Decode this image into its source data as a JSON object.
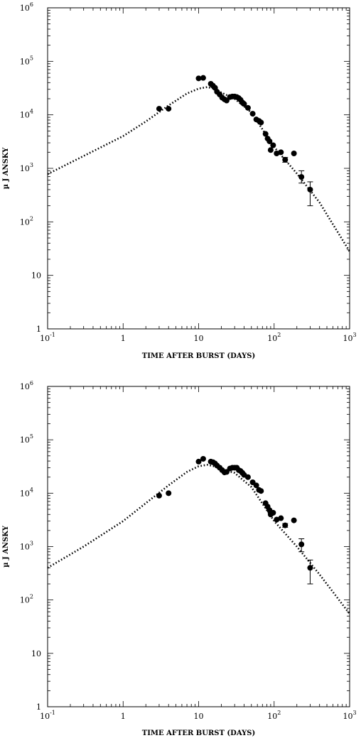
{
  "chart_data": [
    {
      "type": "scatter",
      "xlabel": "TIME AFTER BURST (DAYS)",
      "ylabel": "µ J ANSKY",
      "xscale": "log",
      "yscale": "log",
      "xlim": [
        0.1,
        1000
      ],
      "ylim": [
        1,
        1000000
      ],
      "x_ticks": [
        {
          "value": 0.1,
          "base": "10",
          "exp": "-1"
        },
        {
          "value": 1,
          "base": "1",
          "exp": ""
        },
        {
          "value": 10,
          "base": "10",
          "exp": ""
        },
        {
          "value": 100,
          "base": "10",
          "exp": "2"
        },
        {
          "value": 1000,
          "base": "10",
          "exp": "3"
        }
      ],
      "y_ticks": [
        {
          "value": 1,
          "base": "1",
          "exp": ""
        },
        {
          "value": 10,
          "base": "10",
          "exp": ""
        },
        {
          "value": 100,
          "base": "10",
          "exp": "2"
        },
        {
          "value": 1000,
          "base": "10",
          "exp": "3"
        },
        {
          "value": 10000,
          "base": "10",
          "exp": "4"
        },
        {
          "value": 100000,
          "base": "10",
          "exp": "5"
        },
        {
          "value": 1000000,
          "base": "10",
          "exp": "6"
        }
      ],
      "series": [
        {
          "style": "markers",
          "color": "#000000",
          "points": [
            {
              "x": 3,
              "y": 13000
            },
            {
              "x": 4,
              "y": 13000
            },
            {
              "x": 10,
              "y": 48000
            },
            {
              "x": 11.5,
              "y": 49000
            },
            {
              "x": 14.5,
              "y": 38000
            },
            {
              "x": 15.5,
              "y": 35000
            },
            {
              "x": 16.5,
              "y": 32000
            },
            {
              "x": 17.5,
              "y": 27000
            },
            {
              "x": 19,
              "y": 24000
            },
            {
              "x": 20.5,
              "y": 21000
            },
            {
              "x": 22,
              "y": 19500
            },
            {
              "x": 23.5,
              "y": 18500
            },
            {
              "x": 26,
              "y": 21500
            },
            {
              "x": 28,
              "y": 22000
            },
            {
              "x": 30,
              "y": 22000
            },
            {
              "x": 32,
              "y": 21500
            },
            {
              "x": 34,
              "y": 20500
            },
            {
              "x": 36,
              "y": 19000
            },
            {
              "x": 38,
              "y": 17000
            },
            {
              "x": 40,
              "y": 16000
            },
            {
              "x": 45,
              "y": 13500
            },
            {
              "x": 52,
              "y": 10500
            },
            {
              "x": 58,
              "y": 8200
            },
            {
              "x": 63,
              "y": 7700
            },
            {
              "x": 67,
              "y": 7200
            },
            {
              "x": 77,
              "y": 4400
            },
            {
              "x": 82,
              "y": 3600
            },
            {
              "x": 87,
              "y": 3200
            },
            {
              "x": 90,
              "y": 2200
            },
            {
              "x": 97,
              "y": 2700
            },
            {
              "x": 108,
              "y": 1900
            },
            {
              "x": 123,
              "y": 2000
            },
            {
              "x": 140,
              "y": 1450,
              "err": [
                1300,
                1600
              ]
            },
            {
              "x": 183,
              "y": 1900
            },
            {
              "x": 230,
              "y": 690,
              "err": [
                530,
                900
              ]
            },
            {
              "x": 300,
              "y": 400,
              "err": [
                200,
                560
              ]
            }
          ]
        },
        {
          "style": "dotted-line",
          "color": "#000000",
          "points": [
            {
              "x": 0.1,
              "y": 780
            },
            {
              "x": 0.3,
              "y": 1700
            },
            {
              "x": 1,
              "y": 4000
            },
            {
              "x": 2,
              "y": 7500
            },
            {
              "x": 4,
              "y": 15000
            },
            {
              "x": 7,
              "y": 25000
            },
            {
              "x": 10,
              "y": 31000
            },
            {
              "x": 13,
              "y": 33000
            },
            {
              "x": 16,
              "y": 31000
            },
            {
              "x": 20,
              "y": 26000
            },
            {
              "x": 30,
              "y": 20000
            },
            {
              "x": 50,
              "y": 11000
            },
            {
              "x": 100,
              "y": 2500
            },
            {
              "x": 200,
              "y": 800
            },
            {
              "x": 400,
              "y": 230
            },
            {
              "x": 1000,
              "y": 28
            }
          ]
        }
      ]
    },
    {
      "type": "scatter",
      "xlabel": "TIME AFTER BURST (DAYS)",
      "ylabel": "µ J ANSKY",
      "xscale": "log",
      "yscale": "log",
      "xlim": [
        0.1,
        1000
      ],
      "ylim": [
        1,
        1000000
      ],
      "x_ticks": [
        {
          "value": 0.1,
          "base": "10",
          "exp": "-1"
        },
        {
          "value": 1,
          "base": "1",
          "exp": ""
        },
        {
          "value": 10,
          "base": "10",
          "exp": ""
        },
        {
          "value": 100,
          "base": "10",
          "exp": "2"
        },
        {
          "value": 1000,
          "base": "10",
          "exp": "3"
        }
      ],
      "y_ticks": [
        {
          "value": 1,
          "base": "1",
          "exp": ""
        },
        {
          "value": 10,
          "base": "10",
          "exp": ""
        },
        {
          "value": 100,
          "base": "10",
          "exp": "2"
        },
        {
          "value": 1000,
          "base": "10",
          "exp": "3"
        },
        {
          "value": 10000,
          "base": "10",
          "exp": "4"
        },
        {
          "value": 100000,
          "base": "10",
          "exp": "5"
        },
        {
          "value": 1000000,
          "base": "10",
          "exp": "6"
        }
      ],
      "series": [
        {
          "style": "markers",
          "color": "#000000",
          "points": [
            {
              "x": 3,
              "y": 9000
            },
            {
              "x": 4,
              "y": 10000
            },
            {
              "x": 10,
              "y": 39000
            },
            {
              "x": 11.5,
              "y": 44000
            },
            {
              "x": 14.5,
              "y": 39000
            },
            {
              "x": 15.5,
              "y": 38000
            },
            {
              "x": 16.5,
              "y": 36000
            },
            {
              "x": 17.5,
              "y": 33000
            },
            {
              "x": 19,
              "y": 30000
            },
            {
              "x": 20.5,
              "y": 27000
            },
            {
              "x": 22,
              "y": 24500
            },
            {
              "x": 23.5,
              "y": 25000
            },
            {
              "x": 26,
              "y": 29000
            },
            {
              "x": 28,
              "y": 30000
            },
            {
              "x": 30,
              "y": 30000
            },
            {
              "x": 32,
              "y": 30000
            },
            {
              "x": 34,
              "y": 27000
            },
            {
              "x": 36,
              "y": 26000
            },
            {
              "x": 38,
              "y": 24000
            },
            {
              "x": 40,
              "y": 22000
            },
            {
              "x": 45,
              "y": 20000
            },
            {
              "x": 52,
              "y": 16000
            },
            {
              "x": 58,
              "y": 14000
            },
            {
              "x": 63,
              "y": 11500
            },
            {
              "x": 67,
              "y": 11000
            },
            {
              "x": 77,
              "y": 6500
            },
            {
              "x": 82,
              "y": 5600
            },
            {
              "x": 87,
              "y": 4800
            },
            {
              "x": 90,
              "y": 4000
            },
            {
              "x": 97,
              "y": 4300
            },
            {
              "x": 108,
              "y": 3200
            },
            {
              "x": 123,
              "y": 3400
            },
            {
              "x": 140,
              "y": 2500,
              "err": [
                2300,
                2700
              ]
            },
            {
              "x": 183,
              "y": 3100
            },
            {
              "x": 230,
              "y": 1100,
              "err": [
                800,
                1400
              ]
            },
            {
              "x": 300,
              "y": 400,
              "err": [
                200,
                560
              ]
            }
          ]
        },
        {
          "style": "dotted-line",
          "color": "#000000",
          "points": [
            {
              "x": 0.1,
              "y": 400
            },
            {
              "x": 0.3,
              "y": 1000
            },
            {
              "x": 1,
              "y": 3000
            },
            {
              "x": 2,
              "y": 6500
            },
            {
              "x": 4,
              "y": 14000
            },
            {
              "x": 7,
              "y": 25000
            },
            {
              "x": 10,
              "y": 32000
            },
            {
              "x": 13,
              "y": 34000
            },
            {
              "x": 16,
              "y": 32000
            },
            {
              "x": 20,
              "y": 28000
            },
            {
              "x": 30,
              "y": 24000
            },
            {
              "x": 50,
              "y": 13000
            },
            {
              "x": 100,
              "y": 3000
            },
            {
              "x": 200,
              "y": 1000
            },
            {
              "x": 400,
              "y": 300
            },
            {
              "x": 1000,
              "y": 55
            }
          ]
        }
      ]
    }
  ]
}
